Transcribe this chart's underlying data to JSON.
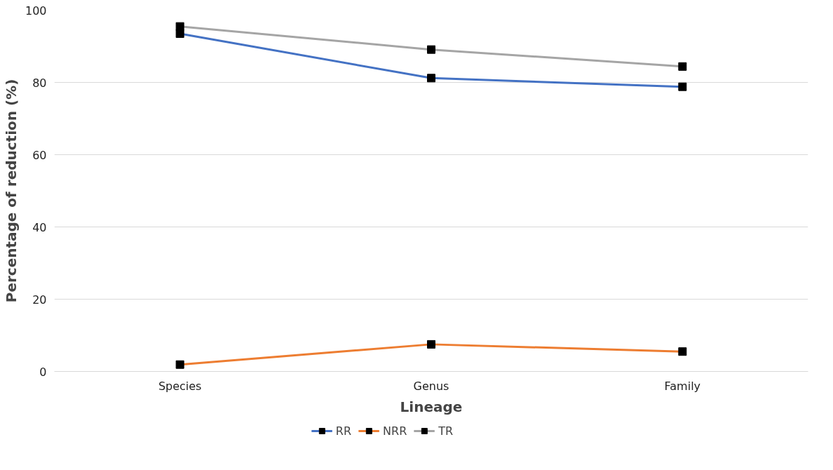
{
  "chart_data": {
    "type": "line",
    "xlabel": "Lineage",
    "ylabel": "Percentage of reduction (%)",
    "categories": [
      "Species",
      "Genus",
      "Family"
    ],
    "series": [
      {
        "name": "RR",
        "color": "#4472c4",
        "values": [
          93.5,
          81.2,
          78.8
        ]
      },
      {
        "name": "NRR",
        "color": "#ed7d31",
        "values": [
          1.9,
          7.5,
          5.5
        ]
      },
      {
        "name": "TR",
        "color": "#a5a5a5",
        "values": [
          95.5,
          89.1,
          84.4
        ]
      }
    ],
    "ylim": [
      0,
      100
    ],
    "yticks": [
      0,
      20,
      40,
      60,
      80,
      100
    ],
    "grid": "y",
    "legend": "bottom",
    "marker": "square",
    "line_style": "solid"
  }
}
